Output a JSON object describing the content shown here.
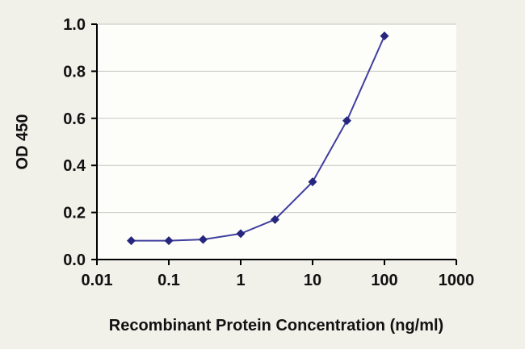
{
  "chart_data": {
    "type": "line",
    "x": [
      0.03,
      0.1,
      0.3,
      1,
      3,
      10,
      30,
      100
    ],
    "y": [
      0.08,
      0.08,
      0.085,
      0.11,
      0.17,
      0.33,
      0.59,
      0.95
    ],
    "xlabel": "Recombinant Protein Concentration (ng/ml)",
    "ylabel": "OD 450",
    "x_scale": "log",
    "xlim": [
      0.01,
      1000
    ],
    "ylim": [
      0.0,
      1.0
    ],
    "x_tick_labels": [
      "0.01",
      "0.1",
      "1",
      "10",
      "100",
      "1000"
    ],
    "x_tick_values": [
      0.01,
      0.1,
      1,
      10,
      100,
      1000
    ],
    "y_tick_labels": [
      "0.0",
      "0.2",
      "0.4",
      "0.6",
      "0.8",
      "1.0"
    ],
    "y_tick_values": [
      0.0,
      0.2,
      0.4,
      0.6,
      0.8,
      1.0
    ],
    "grid": "horizontal",
    "legend": "none",
    "colors": {
      "line": "#3f3f9e",
      "marker": "#26267e",
      "grid": "#c7c6c0",
      "axis": "#000000",
      "figure_background": "#f1f0e9",
      "plot_background": "#fdfdfa"
    },
    "marker_shape": "diamond"
  }
}
